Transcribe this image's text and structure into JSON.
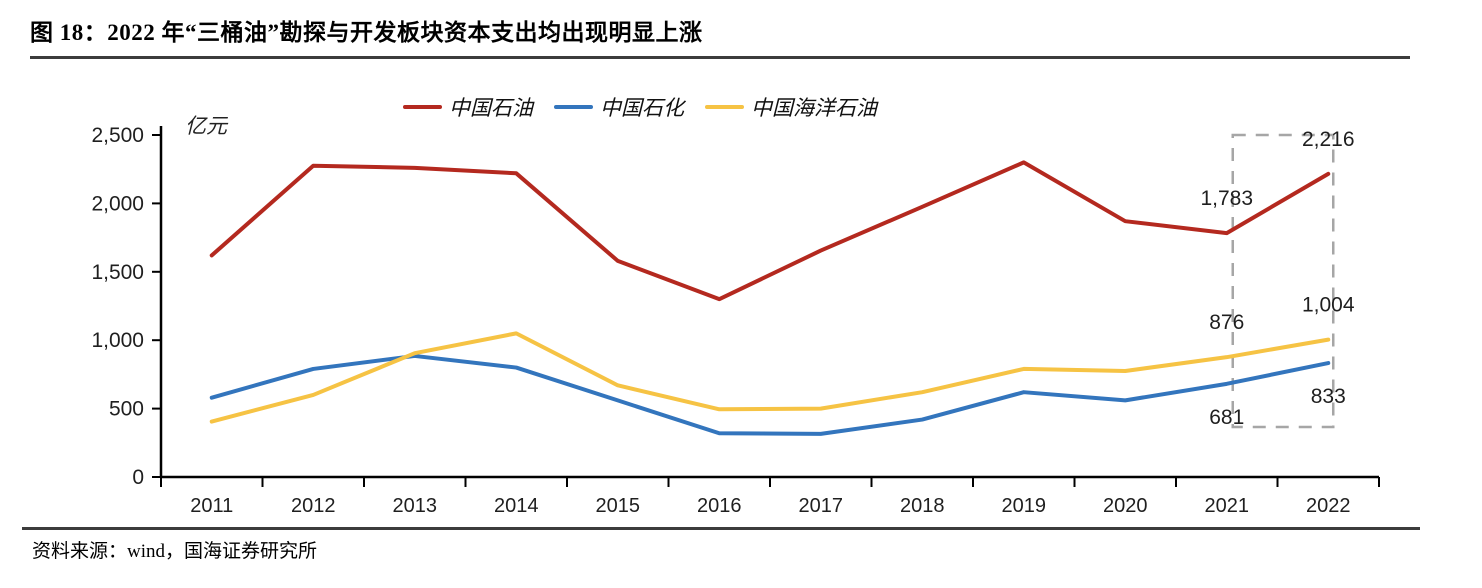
{
  "header": {
    "title": "图 18：2022 年“三桶油”勘探与开发板块资本支出均出现明显上涨"
  },
  "legend": {
    "items": [
      {
        "label": "中国石油",
        "color": "#b4291f"
      },
      {
        "label": "中国石化",
        "color": "#3375bd"
      },
      {
        "label": "中国海洋石油",
        "color": "#f6c344"
      }
    ]
  },
  "y_axis": {
    "unit": "亿元",
    "tick_step": 500,
    "tick_labels": [
      "0",
      "500",
      "1,000",
      "1,500",
      "2,000",
      "2,500"
    ]
  },
  "chart_data": {
    "type": "line",
    "title": "图 18：2022 年“三桶油”勘探与开发板块资本支出均出现明显上涨",
    "xlabel": "",
    "ylabel": "亿元",
    "ylim": [
      0,
      2500
    ],
    "grid": false,
    "legend_position": "top",
    "categories": [
      "2011",
      "2012",
      "2013",
      "2014",
      "2015",
      "2016",
      "2017",
      "2018",
      "2019",
      "2020",
      "2021",
      "2022"
    ],
    "series": [
      {
        "name": "中国石油",
        "color": "#b4291f",
        "values": [
          1620,
          2275,
          2260,
          2220,
          1580,
          1300,
          1655,
          1975,
          2300,
          1870,
          1783,
          2216
        ]
      },
      {
        "name": "中国石化",
        "color": "#3375bd",
        "values": [
          580,
          790,
          885,
          800,
          560,
          320,
          315,
          420,
          620,
          560,
          681,
          833
        ]
      },
      {
        "name": "中国海洋石油",
        "color": "#f6c344",
        "values": [
          405,
          600,
          905,
          1050,
          670,
          495,
          500,
          620,
          790,
          775,
          876,
          1004
        ]
      }
    ],
    "annotations": [
      {
        "series": "中国石油",
        "year": "2021",
        "text": "1,783",
        "placement": "above"
      },
      {
        "series": "中国石油",
        "year": "2022",
        "text": "2,216",
        "placement": "above"
      },
      {
        "series": "中国海洋石油",
        "year": "2021",
        "text": "876",
        "placement": "above"
      },
      {
        "series": "中国海洋石油",
        "year": "2022",
        "text": "1,004",
        "placement": "above"
      },
      {
        "series": "中国石化",
        "year": "2021",
        "text": "681",
        "placement": "below"
      },
      {
        "series": "中国石化",
        "year": "2022",
        "text": "833",
        "placement": "below"
      }
    ],
    "highlight_box": {
      "years": [
        "2021",
        "2022"
      ],
      "color": "#a6a6a6",
      "style": "dashed"
    }
  },
  "footer": {
    "source": "资料来源：wind，国海证券研究所"
  }
}
